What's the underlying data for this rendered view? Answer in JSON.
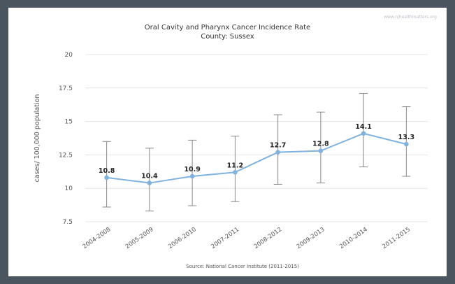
{
  "chart_data": {
    "type": "line",
    "title": "Oral Cavity and Pharynx Cancer Incidence Rate",
    "subtitle": "County: Sussex",
    "watermark": "www.njhealthmatters.org",
    "ylabel": "cases/ 100,000 population",
    "xlabel": "",
    "source": "Source: National Cancer Institute (2011-2015)",
    "ylim": [
      7.5,
      20
    ],
    "yticks": [
      "7.5",
      "10",
      "12.5",
      "15",
      "17.5",
      "20"
    ],
    "ytick_values": [
      7.5,
      10,
      12.5,
      15,
      17.5,
      20
    ],
    "categories": [
      "2004-2008",
      "2005-2009",
      "2006-2010",
      "2007-2011",
      "2008-2012",
      "2009-2013",
      "2010-2014",
      "2011-2015"
    ],
    "values": [
      10.8,
      10.4,
      10.9,
      11.2,
      12.7,
      12.8,
      14.1,
      13.3
    ],
    "value_labels": [
      "10.8",
      "10.4",
      "10.9",
      "11.2",
      "12.7",
      "12.8",
      "14.1",
      "13.3"
    ],
    "error_low": [
      8.6,
      8.3,
      8.7,
      9.0,
      10.3,
      10.4,
      11.6,
      10.9
    ],
    "error_high": [
      13.5,
      13.0,
      13.6,
      13.9,
      15.5,
      15.7,
      17.1,
      16.1
    ],
    "grid": true,
    "line_color": "#7fb2e0",
    "error_color": "#888888"
  }
}
